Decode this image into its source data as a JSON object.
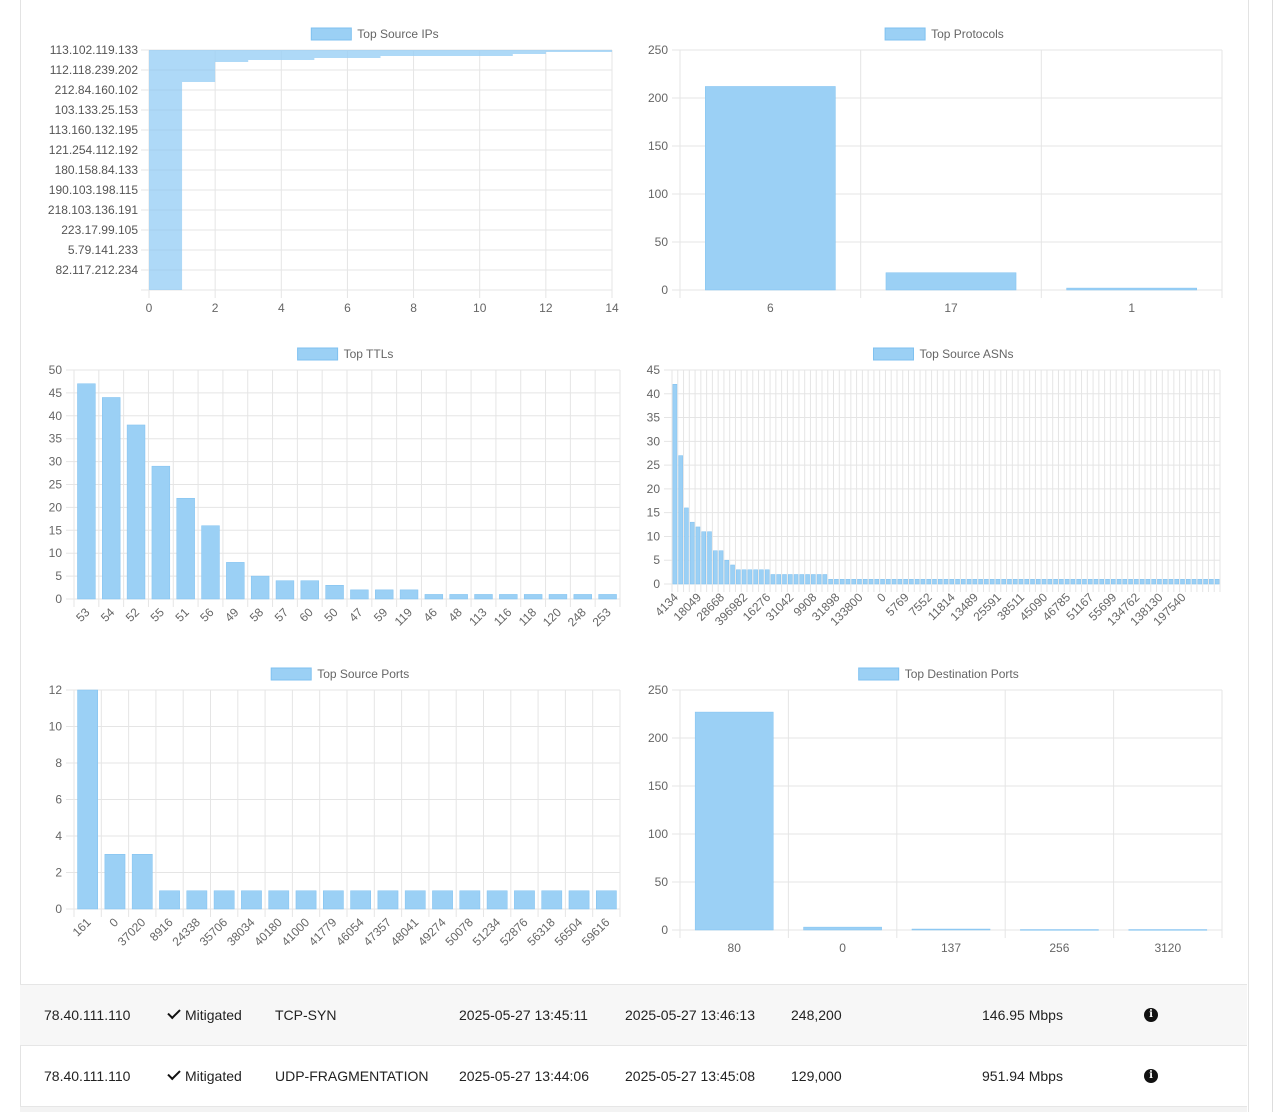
{
  "chart_data": [
    {
      "type": "bar",
      "orientation": "horizontal",
      "title": "Top Source IPs",
      "tick_labels": [
        "113.102.119.133",
        "112.118.239.202",
        "212.84.160.102",
        "103.133.25.153",
        "113.160.132.195",
        "121.254.112.192",
        "180.158.84.133",
        "190.103.198.115",
        "218.103.136.191",
        "223.17.99.105",
        "5.79.141.233",
        "82.117.212.234"
      ],
      "values": [
        14,
        12,
        11,
        7,
        5,
        3,
        2,
        2,
        2,
        2,
        2,
        2,
        2,
        2,
        2,
        2,
        1,
        1,
        1,
        1,
        1,
        1,
        1,
        1,
        1,
        1,
        1,
        1,
        1,
        1,
        1,
        1,
        1,
        1,
        1,
        1,
        1,
        1,
        1,
        1,
        1,
        1,
        1,
        1,
        1,
        1,
        1,
        1,
        1,
        1,
        1,
        1,
        1,
        1,
        1,
        1,
        1,
        1,
        1,
        1,
        1,
        1,
        1,
        1,
        1,
        1,
        1,
        1,
        1,
        1,
        1,
        1,
        1,
        1,
        1,
        1,
        1,
        1,
        1,
        1,
        1,
        1,
        1,
        1,
        1,
        1,
        1,
        1,
        1,
        1,
        1,
        1,
        1,
        1,
        1,
        1,
        1,
        1,
        1,
        1,
        1,
        1,
        1,
        1,
        1,
        1,
        1,
        1,
        1,
        1,
        1,
        1,
        1,
        1,
        1,
        1,
        1,
        1,
        1,
        1
      ],
      "xlim": [
        0,
        14
      ],
      "xticks": [
        0,
        2,
        4,
        6,
        8,
        10,
        12,
        14
      ]
    },
    {
      "type": "bar",
      "title": "Top Protocols",
      "categories": [
        "6",
        "17",
        "1"
      ],
      "values": [
        212,
        18,
        2
      ],
      "ylim": [
        0,
        250
      ],
      "yticks": [
        0,
        50,
        100,
        150,
        200,
        250
      ]
    },
    {
      "type": "bar",
      "title": "Top TTLs",
      "categories": [
        "53",
        "54",
        "52",
        "55",
        "51",
        "56",
        "49",
        "58",
        "57",
        "60",
        "50",
        "47",
        "59",
        "119",
        "46",
        "48",
        "113",
        "116",
        "118",
        "120",
        "248",
        "253"
      ],
      "values": [
        47,
        44,
        38,
        29,
        22,
        16,
        8,
        5,
        4,
        4,
        3,
        2,
        2,
        2,
        1,
        1,
        1,
        1,
        1,
        1,
        1,
        1
      ],
      "ylim": [
        0,
        50
      ],
      "yticks": [
        0,
        5,
        10,
        15,
        20,
        25,
        30,
        35,
        40,
        45,
        50
      ]
    },
    {
      "type": "bar",
      "title": "Top Source ASNs",
      "tick_labels": [
        "4134",
        "18049",
        "28668",
        "396982",
        "16276",
        "31042",
        "9908",
        "31898",
        "133800",
        "0",
        "5769",
        "7552",
        "11814",
        "13489",
        "25591",
        "38511",
        "45090",
        "46785",
        "51167",
        "55699",
        "134762",
        "138130",
        "197540"
      ],
      "values": [
        42,
        27,
        16,
        13,
        12,
        11,
        11,
        7,
        7,
        5,
        4,
        3,
        3,
        3,
        3,
        3,
        3,
        2,
        2,
        2,
        2,
        2,
        2,
        2,
        2,
        2,
        2,
        1,
        1,
        1,
        1,
        1,
        1,
        1,
        1,
        1,
        1,
        1,
        1,
        1,
        1,
        1,
        1,
        1,
        1,
        1,
        1,
        1,
        1,
        1,
        1,
        1,
        1,
        1,
        1,
        1,
        1,
        1,
        1,
        1,
        1,
        1,
        1,
        1,
        1,
        1,
        1,
        1,
        1,
        1,
        1,
        1,
        1,
        1,
        1,
        1,
        1,
        1,
        1,
        1,
        1,
        1,
        1,
        1,
        1,
        1,
        1,
        1,
        1,
        1,
        1,
        1,
        1,
        1,
        1
      ],
      "ylim": [
        0,
        45
      ],
      "yticks": [
        0,
        5,
        10,
        15,
        20,
        25,
        30,
        35,
        40,
        45
      ]
    },
    {
      "type": "bar",
      "title": "Top Source Ports",
      "categories": [
        "161",
        "0",
        "37020",
        "8916",
        "24338",
        "35706",
        "38034",
        "40180",
        "41000",
        "41779",
        "46054",
        "47357",
        "48041",
        "49274",
        "50078",
        "51234",
        "52876",
        "56318",
        "56504",
        "59616"
      ],
      "values": [
        12,
        3,
        3,
        1,
        1,
        1,
        1,
        1,
        1,
        1,
        1,
        1,
        1,
        1,
        1,
        1,
        1,
        1,
        1,
        1
      ],
      "ylim": [
        0,
        12
      ],
      "yticks": [
        0,
        2,
        4,
        6,
        8,
        10,
        12
      ]
    },
    {
      "type": "bar",
      "title": "Top Destination Ports",
      "categories": [
        "80",
        "0",
        "137",
        "256",
        "3120"
      ],
      "values": [
        227,
        3,
        1,
        0.5,
        0.5
      ],
      "ylim": [
        0,
        250
      ],
      "yticks": [
        0,
        50,
        100,
        150,
        200,
        250
      ]
    }
  ],
  "style": {
    "bar_fill": "#9bd0f5",
    "bar_stroke": "#7fc1f0",
    "grid": "#e5e5e5",
    "axis_text": "#666"
  },
  "attacks": [
    {
      "ip": "78.40.111.110",
      "status": "Mitigated",
      "type": "TCP-SYN",
      "start": "2025-05-27 13:45:11",
      "end": "2025-05-27 13:46:13",
      "packets": "248,200",
      "rate": "146.95 Mbps"
    },
    {
      "ip": "78.40.111.110",
      "status": "Mitigated",
      "type": "UDP-FRAGMENTATION",
      "start": "2025-05-27 13:44:06",
      "end": "2025-05-27 13:45:08",
      "packets": "129,000",
      "rate": "951.94 Mbps"
    }
  ]
}
